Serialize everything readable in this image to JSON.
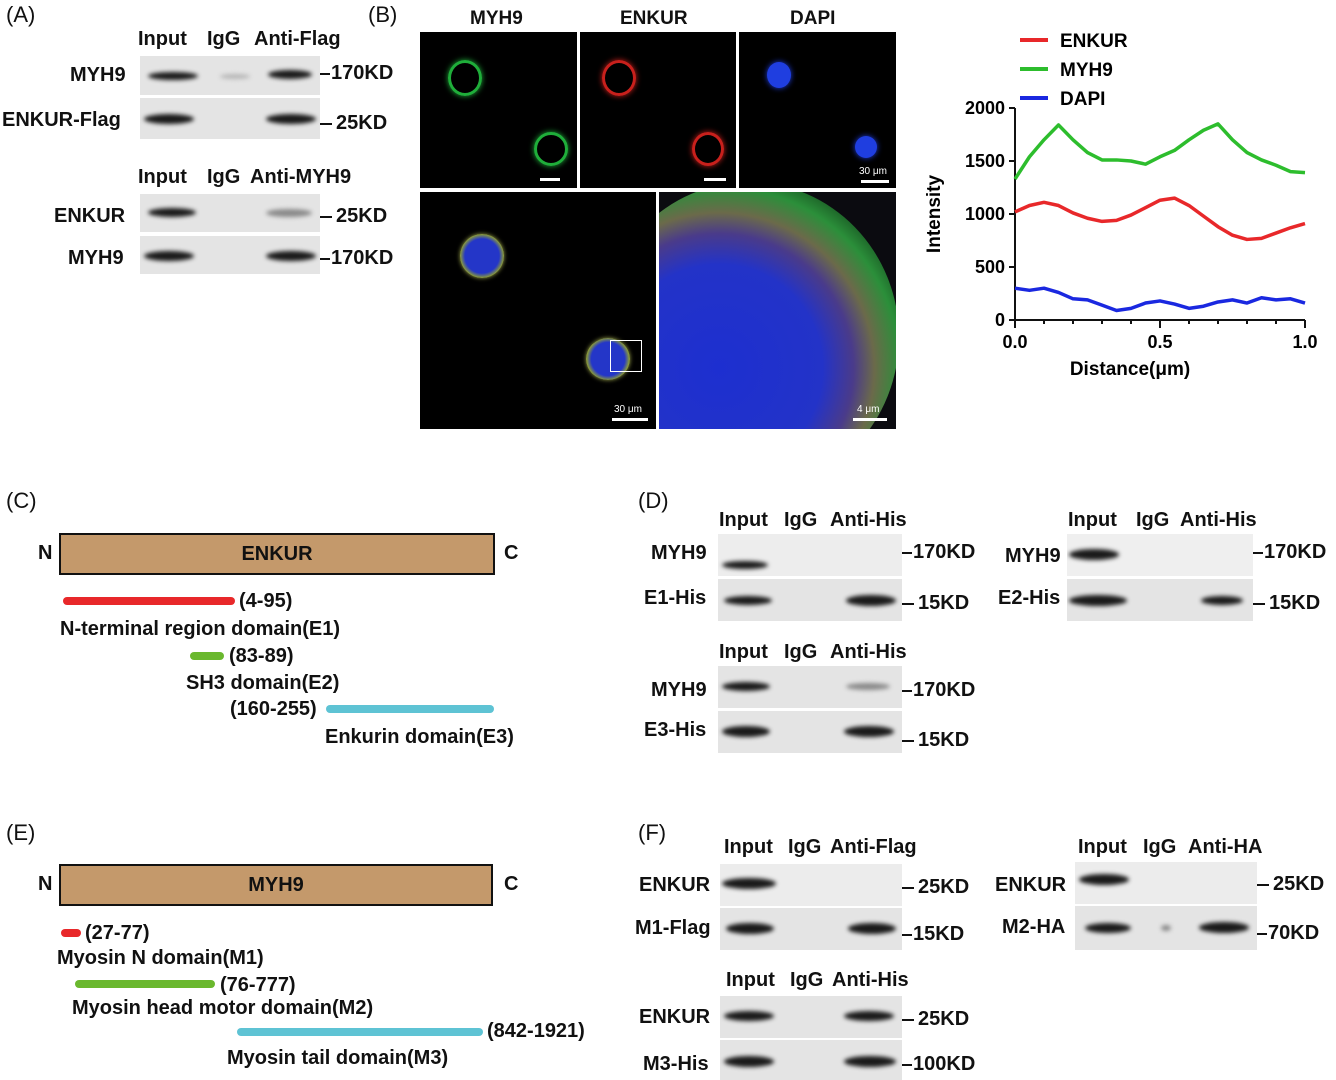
{
  "panels": {
    "A": {
      "label": "(A)",
      "top": {
        "headers": [
          "Input",
          "IgG",
          "Anti-Flag"
        ],
        "rows": [
          {
            "name": "MYH9",
            "kd": "170KD"
          },
          {
            "name": "ENKUR-Flag",
            "kd": "25KD"
          }
        ]
      },
      "bottom": {
        "headers": [
          "Input",
          "IgG",
          "Anti-MYH9"
        ],
        "rows": [
          {
            "name": "ENKUR",
            "kd": "25KD"
          },
          {
            "name": "MYH9",
            "kd": "170KD"
          }
        ]
      }
    },
    "B": {
      "label": "(B)",
      "channels": [
        "MYH9",
        "ENKUR",
        "DAPI"
      ],
      "scalebars": {
        "top": "30 μm",
        "merge": "30 μm",
        "zoom": "4 μm"
      }
    },
    "C": {
      "label": "(C)",
      "n": "N",
      "c": "C",
      "protein": "ENKUR",
      "domains": [
        {
          "range": "(4-95)",
          "name": "N-terminal region domain(E1)",
          "color": "#e8282a"
        },
        {
          "range": "(83-89)",
          "name": "SH3 domain(E2)",
          "color": "#6ab82e"
        },
        {
          "range": "(160-255)",
          "name": "Enkurin domain(E3)",
          "color": "#5ec3d4"
        }
      ]
    },
    "D": {
      "label": "(D)",
      "blot1": {
        "headers": [
          "Input",
          "IgG",
          "Anti-His"
        ],
        "rows": [
          {
            "name": "MYH9",
            "kd": "170KD"
          },
          {
            "name": "E1-His",
            "kd": "15KD"
          }
        ]
      },
      "blot2": {
        "headers": [
          "Input",
          "IgG",
          "Anti-His"
        ],
        "rows": [
          {
            "name": "MYH9",
            "kd": "170KD"
          },
          {
            "name": "E2-His",
            "kd": "15KD"
          }
        ]
      },
      "blot3": {
        "headers": [
          "Input",
          "IgG",
          "Anti-His"
        ],
        "rows": [
          {
            "name": "MYH9",
            "kd": "170KD"
          },
          {
            "name": "E3-His",
            "kd": "15KD"
          }
        ]
      }
    },
    "E": {
      "label": "(E)",
      "n": "N",
      "c": "C",
      "protein": "MYH9",
      "domains": [
        {
          "range": "(27-77)",
          "name": "Myosin N domain(M1)",
          "color": "#e8282a"
        },
        {
          "range": "(76-777)",
          "name": "Myosin head motor domain(M2)",
          "color": "#6ab82e"
        },
        {
          "range": "(842-1921)",
          "name": "Myosin tail domain(M3)",
          "color": "#5ec3d4"
        }
      ]
    },
    "F": {
      "label": "(F)",
      "blot1": {
        "headers": [
          "Input",
          "IgG",
          "Anti-Flag"
        ],
        "rows": [
          {
            "name": "ENKUR",
            "kd": "25KD"
          },
          {
            "name": "M1-Flag",
            "kd": "15KD"
          }
        ]
      },
      "blot2": {
        "headers": [
          "Input",
          "IgG",
          "Anti-HA"
        ],
        "rows": [
          {
            "name": "ENKUR",
            "kd": "25KD"
          },
          {
            "name": "M2-HA",
            "kd": "70KD"
          }
        ]
      },
      "blot3": {
        "headers": [
          "Input",
          "IgG",
          "Anti-His"
        ],
        "rows": [
          {
            "name": "ENKUR",
            "kd": "25KD"
          },
          {
            "name": "M3-His",
            "kd": "100KD"
          }
        ]
      }
    }
  },
  "chart_data": {
    "type": "line",
    "title": "",
    "xlabel": "Distance(μm)",
    "ylabel": "Intensity",
    "xlim": [
      0,
      1.0
    ],
    "ylim": [
      0,
      2000
    ],
    "xticks": [
      "0.0",
      "0.5",
      "1.0"
    ],
    "yticks": [
      "0",
      "500",
      "1000",
      "1500",
      "2000"
    ],
    "legend_position": "top-left",
    "x": [
      0.0,
      0.05,
      0.1,
      0.15,
      0.2,
      0.25,
      0.3,
      0.35,
      0.4,
      0.45,
      0.5,
      0.55,
      0.6,
      0.65,
      0.7,
      0.75,
      0.8,
      0.85,
      0.9,
      0.95,
      1.0
    ],
    "series": [
      {
        "name": "ENKUR",
        "color": "#e8282a",
        "values": [
          1020,
          1080,
          1110,
          1080,
          1010,
          960,
          930,
          940,
          990,
          1060,
          1130,
          1150,
          1080,
          980,
          880,
          800,
          760,
          770,
          820,
          870,
          910
        ]
      },
      {
        "name": "MYH9",
        "color": "#2dbd2d",
        "values": [
          1330,
          1540,
          1700,
          1840,
          1700,
          1580,
          1510,
          1510,
          1500,
          1470,
          1540,
          1600,
          1700,
          1790,
          1850,
          1700,
          1580,
          1510,
          1460,
          1400,
          1390
        ]
      },
      {
        "name": "DAPI",
        "color": "#1a28e0",
        "values": [
          300,
          280,
          300,
          260,
          200,
          190,
          140,
          90,
          110,
          160,
          180,
          150,
          110,
          130,
          170,
          190,
          160,
          210,
          190,
          200,
          160
        ]
      }
    ]
  }
}
